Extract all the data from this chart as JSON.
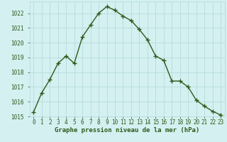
{
  "hours": [
    0,
    1,
    2,
    3,
    4,
    5,
    6,
    7,
    8,
    9,
    10,
    11,
    12,
    13,
    14,
    15,
    16,
    17,
    18,
    19,
    20,
    21,
    22,
    23
  ],
  "pressure": [
    1015.3,
    1016.6,
    1017.5,
    1018.6,
    1019.1,
    1018.6,
    1020.4,
    1021.2,
    1022.0,
    1022.45,
    1022.2,
    1021.8,
    1021.5,
    1020.9,
    1020.2,
    1019.1,
    1018.8,
    1017.4,
    1017.4,
    1017.0,
    1016.1,
    1015.7,
    1015.35,
    1015.1
  ],
  "line_color": "#2d5a1b",
  "marker": "P",
  "marker_size": 2.5,
  "line_width": 1.0,
  "bg_color": "#d4f0f0",
  "grid_color": "#b0d8d8",
  "ylim_min": 1015,
  "ylim_max": 1022.8,
  "yticks": [
    1015,
    1016,
    1017,
    1018,
    1019,
    1020,
    1021,
    1022
  ],
  "xlabel": "Graphe pression niveau de la mer (hPa)",
  "xlabel_fontsize": 6.5,
  "tick_fontsize": 5.5,
  "tick_color": "#2d5a1b",
  "label_color": "#2d5a1b",
  "monospace_font": "DejaVu Sans Mono"
}
